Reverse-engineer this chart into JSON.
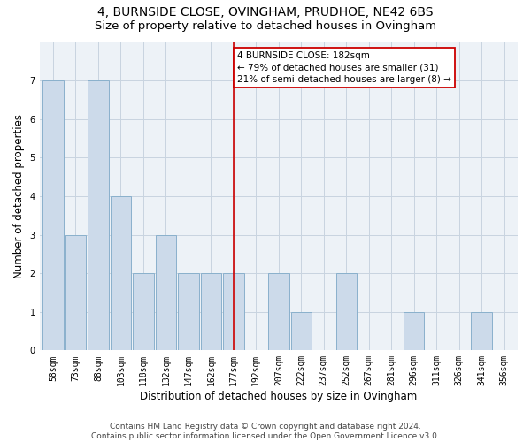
{
  "title": "4, BURNSIDE CLOSE, OVINGHAM, PRUDHOE, NE42 6BS",
  "subtitle": "Size of property relative to detached houses in Ovingham",
  "xlabel": "Distribution of detached houses by size in Ovingham",
  "ylabel": "Number of detached properties",
  "categories": [
    "58sqm",
    "73sqm",
    "88sqm",
    "103sqm",
    "118sqm",
    "132sqm",
    "147sqm",
    "162sqm",
    "177sqm",
    "192sqm",
    "207sqm",
    "222sqm",
    "237sqm",
    "252sqm",
    "267sqm",
    "281sqm",
    "296sqm",
    "311sqm",
    "326sqm",
    "341sqm",
    "356sqm"
  ],
  "bar_heights": [
    7,
    3,
    7,
    4,
    2,
    3,
    2,
    2,
    2,
    0,
    2,
    1,
    0,
    2,
    0,
    0,
    1,
    0,
    0,
    1,
    0
  ],
  "bar_color": "#ccdaea",
  "bar_edge_color": "#8ab0cc",
  "property_index": 8,
  "vline_color": "#cc0000",
  "annotation_text": "4 BURNSIDE CLOSE: 182sqm\n← 79% of detached houses are smaller (31)\n21% of semi-detached houses are larger (8) →",
  "annotation_box_color": "#cc0000",
  "ylim": [
    0,
    8
  ],
  "yticks": [
    0,
    1,
    2,
    3,
    4,
    5,
    6,
    7
  ],
  "footer": "Contains HM Land Registry data © Crown copyright and database right 2024.\nContains public sector information licensed under the Open Government Licence v3.0.",
  "bg_color": "#edf2f7",
  "grid_color": "#c8d4e0",
  "title_fontsize": 10,
  "subtitle_fontsize": 9.5,
  "axis_label_fontsize": 8.5,
  "tick_fontsize": 7,
  "footer_fontsize": 6.5,
  "annotation_fontsize": 7.5
}
